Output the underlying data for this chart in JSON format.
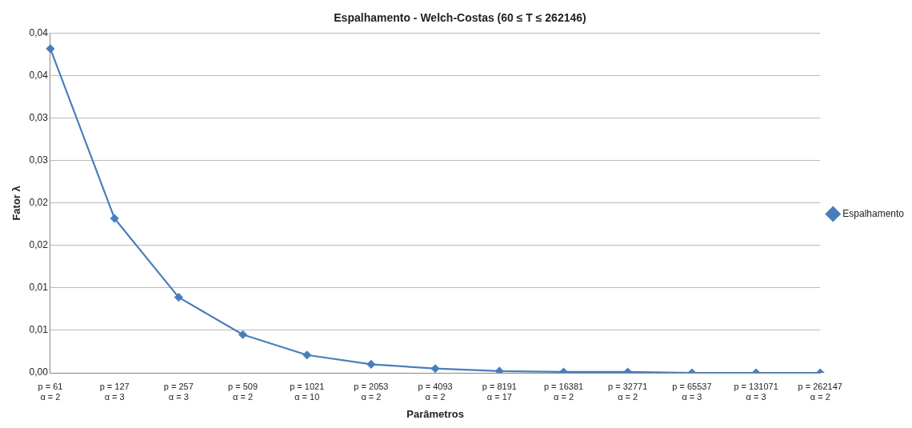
{
  "chart_data": {
    "type": "line",
    "title": "Espalhamento - Welch-Costas (60 ≤ T ≤ 262146)",
    "xlabel": "Parâmetros",
    "ylabel": "Fator λ",
    "categories": [
      "p = 61\nα = 2",
      "p = 127\nα = 3",
      "p = 257\nα = 3",
      "p = 509\nα = 2",
      "p = 1021\nα = 10",
      "p = 2053\nα = 2",
      "p = 4093\nα = 2",
      "p = 8191\nα = 17",
      "p = 16381\nα = 2",
      "p = 32771\nα = 2",
      "p = 65537\nα = 3",
      "p = 131071\nα = 3",
      "p = 262147\nα = 2"
    ],
    "series": [
      {
        "name": "Espalhamento",
        "color": "#4a7ebb",
        "values": [
          0.0382,
          0.0182,
          0.0089,
          0.0045,
          0.0021,
          0.001,
          0.0005,
          0.0002,
          0.0001,
          0.0001,
          0,
          0,
          0
        ]
      }
    ],
    "ylim": [
      0,
      0.04
    ],
    "yticks": [
      {
        "value": 0,
        "label": "0,00"
      },
      {
        "value": 0.005,
        "label": "0,01"
      },
      {
        "value": 0.01,
        "label": "0,01"
      },
      {
        "value": 0.015,
        "label": "0,02"
      },
      {
        "value": 0.02,
        "label": "0,02"
      },
      {
        "value": 0.025,
        "label": "0,03"
      },
      {
        "value": 0.03,
        "label": "0,03"
      },
      {
        "value": 0.035,
        "label": "0,04"
      },
      {
        "value": 0.04,
        "label": "0,04"
      }
    ],
    "grid": "y",
    "legend": "right",
    "marker": "diamond",
    "line_style": "solid"
  }
}
